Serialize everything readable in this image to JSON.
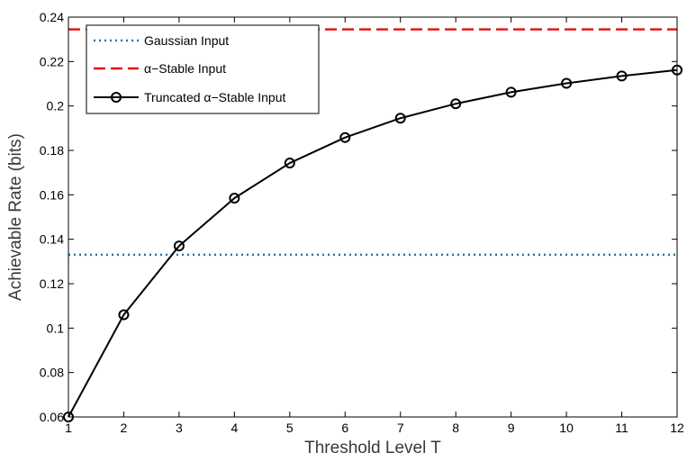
{
  "chart_data": {
    "type": "line",
    "xlabel": "Threshold Level T",
    "ylabel": "Achievable Rate (bits)",
    "xlim": [
      1,
      12
    ],
    "ylim": [
      0.06,
      0.24
    ],
    "xticks": [
      "1",
      "2",
      "3",
      "4",
      "5",
      "6",
      "7",
      "8",
      "9",
      "10",
      "11",
      "12"
    ],
    "yticks": [
      "0.06",
      "0.08",
      "0.1",
      "0.12",
      "0.14",
      "0.16",
      "0.18",
      "0.2",
      "0.22",
      "0.24"
    ],
    "grid": false,
    "legend_position": "top-left",
    "series": [
      {
        "name": "Gaussian Input",
        "style": "dotted",
        "color": "#1f77b4",
        "x": [
          1,
          12
        ],
        "values": [
          0.133,
          0.133
        ]
      },
      {
        "name": "α−Stable Input",
        "style": "dashed",
        "color": "#e3171b",
        "x": [
          1,
          12
        ],
        "values": [
          0.2345,
          0.2345
        ]
      },
      {
        "name": "Truncated α−Stable Input",
        "style": "solid-circle-markers",
        "color": "#000000",
        "x": [
          1,
          2,
          3,
          4,
          5,
          6,
          7,
          8,
          9,
          10,
          11,
          12
        ],
        "values": [
          0.06,
          0.106,
          0.137,
          0.1585,
          0.1743,
          0.1858,
          0.1945,
          0.201,
          0.2062,
          0.2102,
          0.2135,
          0.2162
        ]
      }
    ]
  }
}
